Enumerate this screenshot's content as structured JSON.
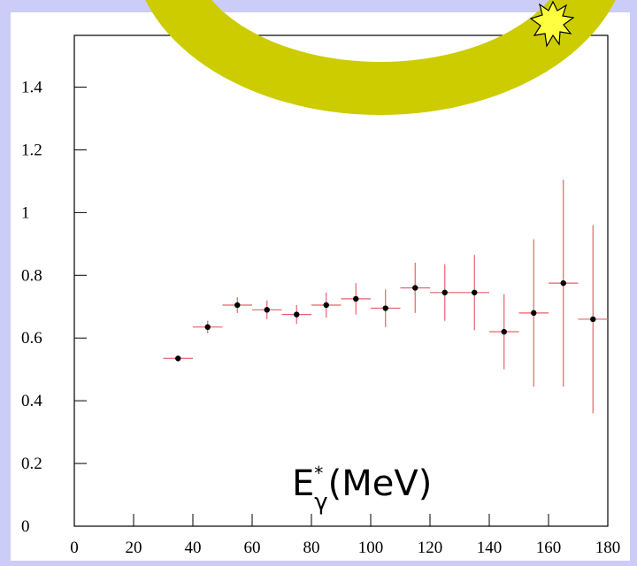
{
  "chart_data": {
    "type": "errorbar",
    "x": [
      35,
      45,
      55,
      65,
      75,
      85,
      95,
      105,
      115,
      125,
      135,
      145,
      155,
      165,
      175
    ],
    "xerr": [
      5,
      5,
      5,
      5,
      5,
      5,
      5,
      5,
      5,
      5,
      5,
      5,
      5,
      5,
      5
    ],
    "values": [
      0.535,
      0.635,
      0.705,
      0.69,
      0.675,
      0.705,
      0.725,
      0.695,
      0.76,
      0.745,
      0.745,
      0.62,
      0.68,
      0.775,
      0.66
    ],
    "errors": [
      0.01,
      0.02,
      0.025,
      0.03,
      0.03,
      0.04,
      0.05,
      0.06,
      0.08,
      0.09,
      0.12,
      0.12,
      0.235,
      0.33,
      0.3
    ],
    "color": "#000000",
    "error_color": "#e8606a",
    "xlim": [
      0,
      180
    ],
    "xticks": [
      0,
      20,
      40,
      60,
      80,
      100,
      120,
      140,
      160,
      180
    ],
    "ylim": [
      0,
      1.565
    ],
    "yticks": [
      0,
      0.2,
      0.4,
      0.6,
      0.8,
      1,
      1.2,
      1.4
    ],
    "annotation": {
      "base": "E",
      "sup": "*",
      "sub": "γ",
      "unit": "(MeV)"
    }
  }
}
